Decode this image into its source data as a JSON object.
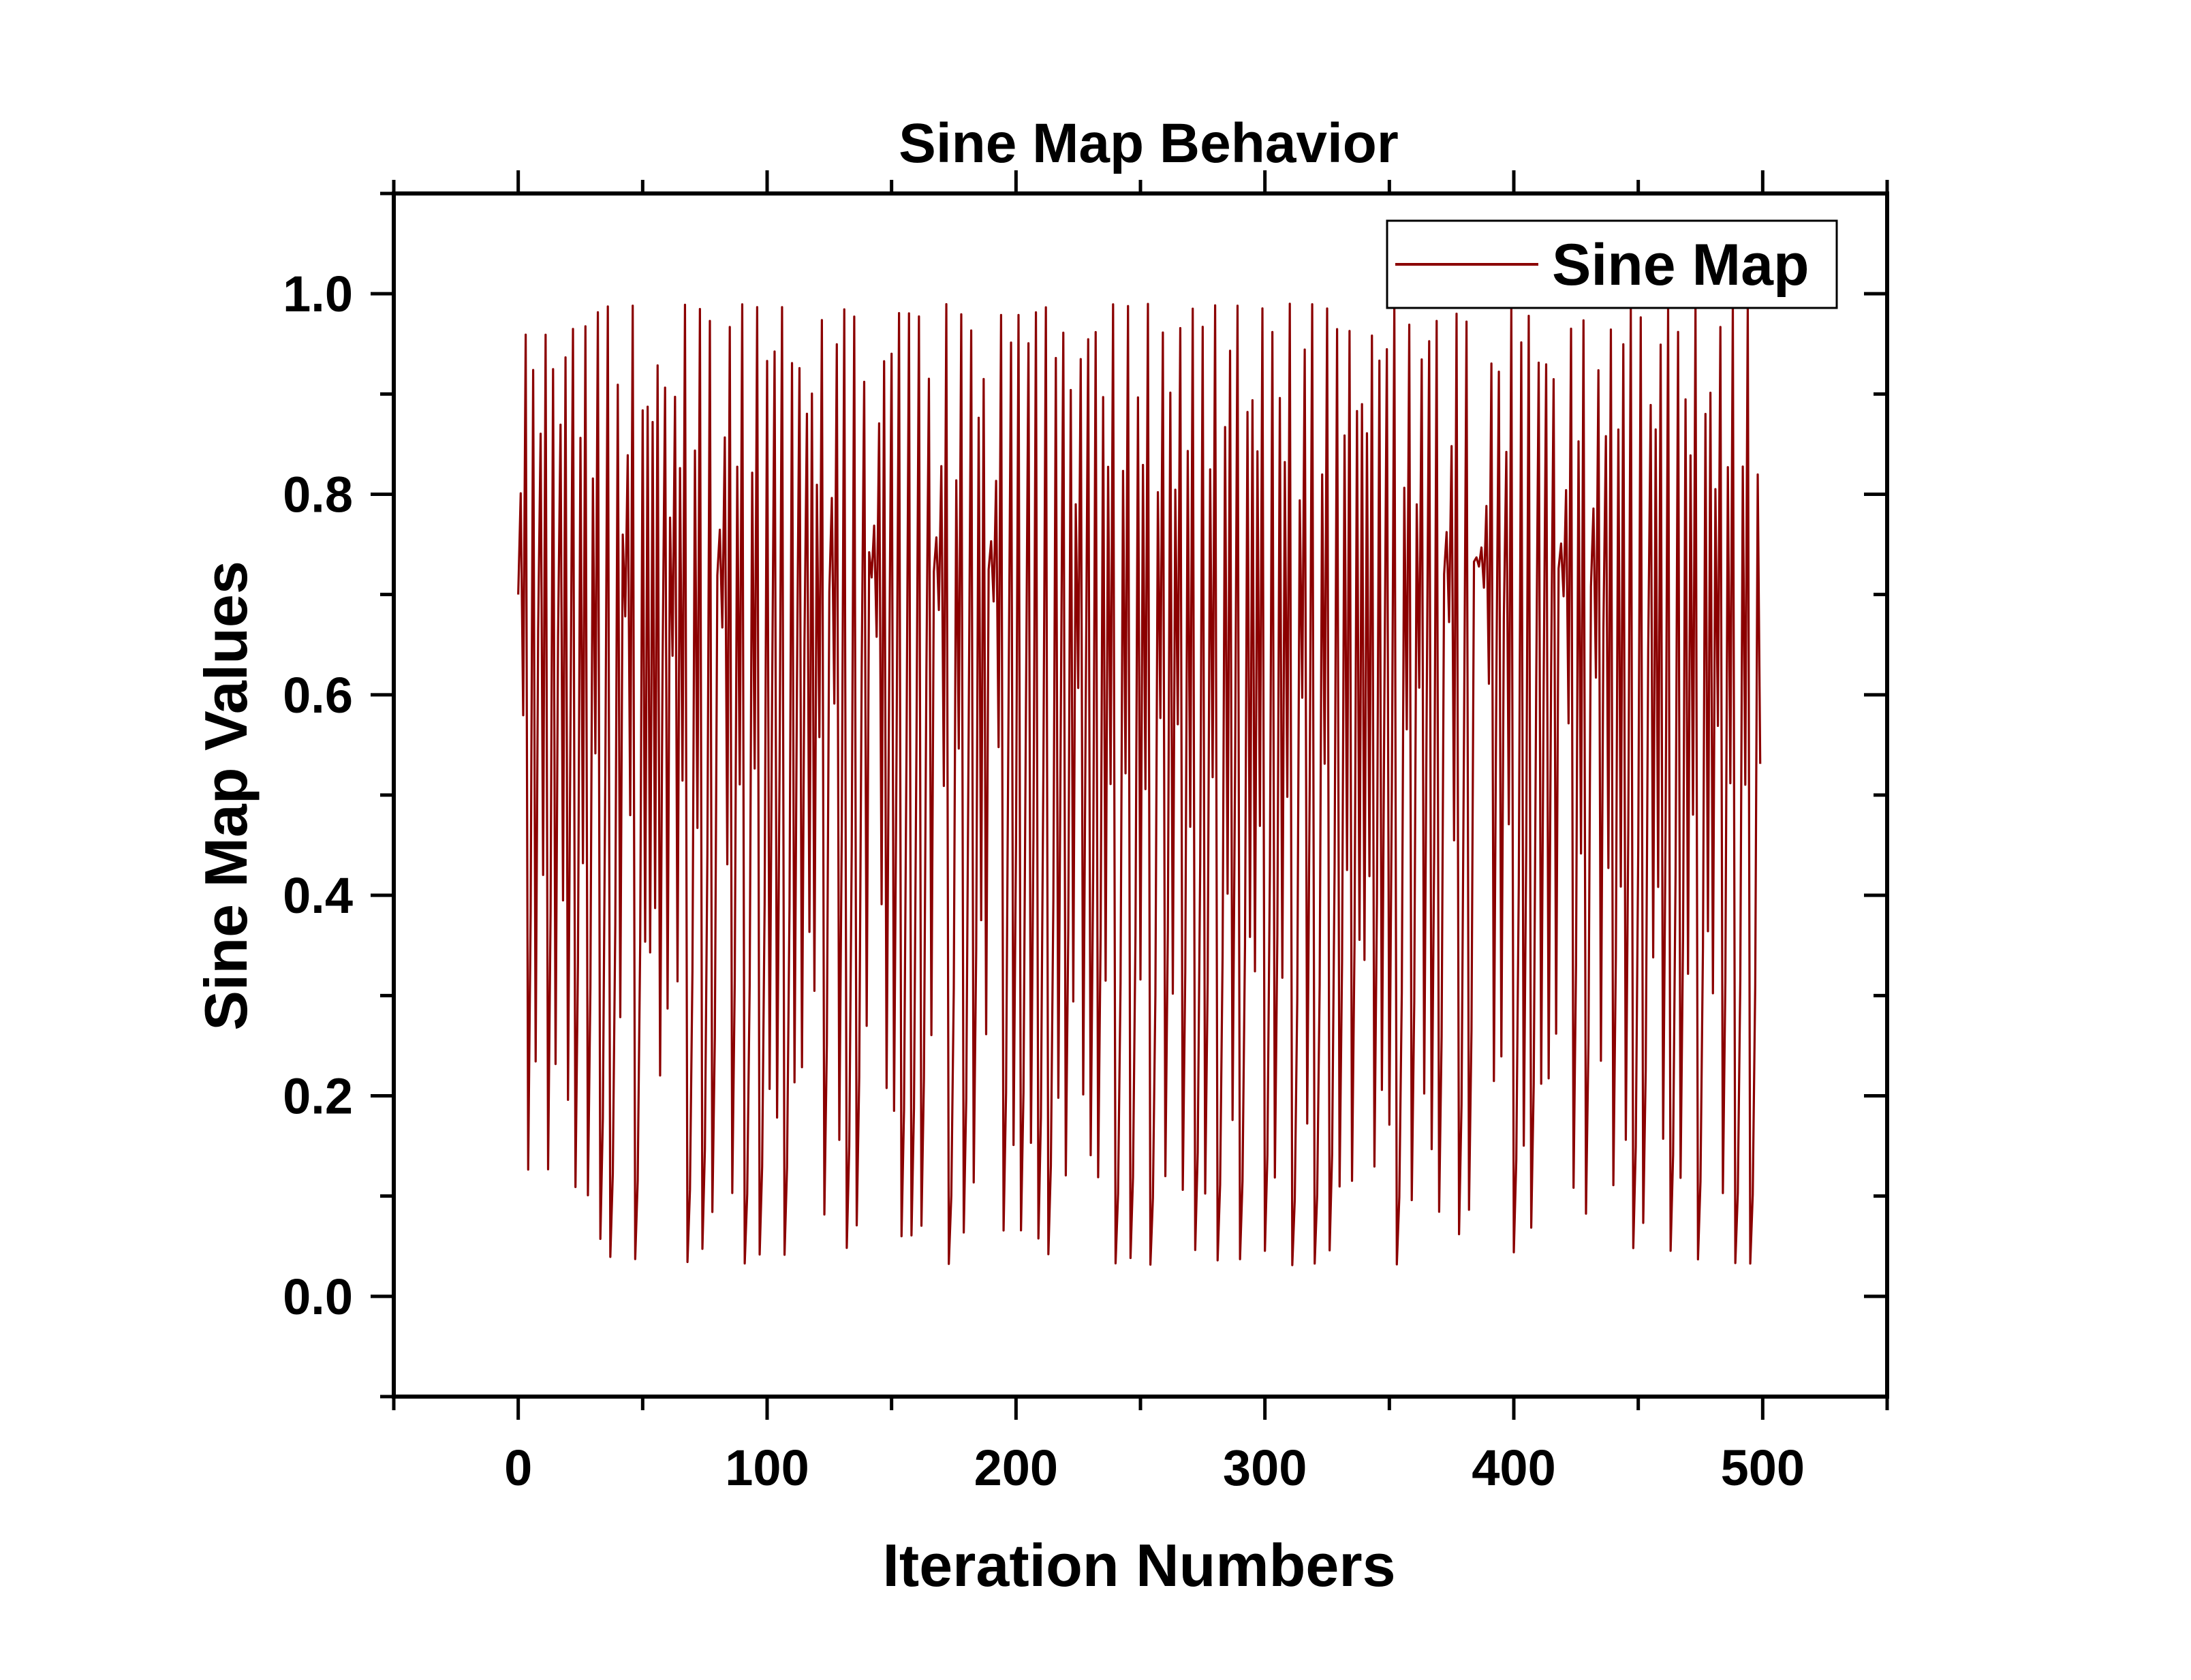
{
  "chart_data": {
    "type": "line",
    "title": "Sine Map Behavior",
    "xlabel": "Iteration Numbers",
    "ylabel": "Sine Map Values",
    "xlim": [
      -50,
      550
    ],
    "ylim": [
      -0.1,
      1.1
    ],
    "x_ticks": [
      0,
      100,
      200,
      300,
      400,
      500
    ],
    "x_tick_labels": [
      "0",
      "100",
      "200",
      "300",
      "400",
      "500"
    ],
    "y_ticks": [
      0.0,
      0.2,
      0.4,
      0.6,
      0.8,
      1.0
    ],
    "y_tick_labels": [
      "0.0",
      "0.2",
      "0.4",
      "0.6",
      "0.8",
      "1.0"
    ],
    "grid": false,
    "legend": {
      "position": "top-right",
      "entries": [
        "Sine Map"
      ]
    },
    "series": [
      {
        "name": "Sine Map",
        "color": "#8b0000",
        "generator": "sine-map",
        "parameter_mu": 0.99,
        "x0": 0.7,
        "x_start": 0,
        "iterations": 500,
        "note": "500 sampled values x[n+1] = mu * sin(pi * x[n]), oscillating chaotically between ~0.0 and ~1.0"
      }
    ]
  },
  "colors": {
    "line": "#8b0000",
    "axis": "#000000",
    "background": "#ffffff"
  }
}
